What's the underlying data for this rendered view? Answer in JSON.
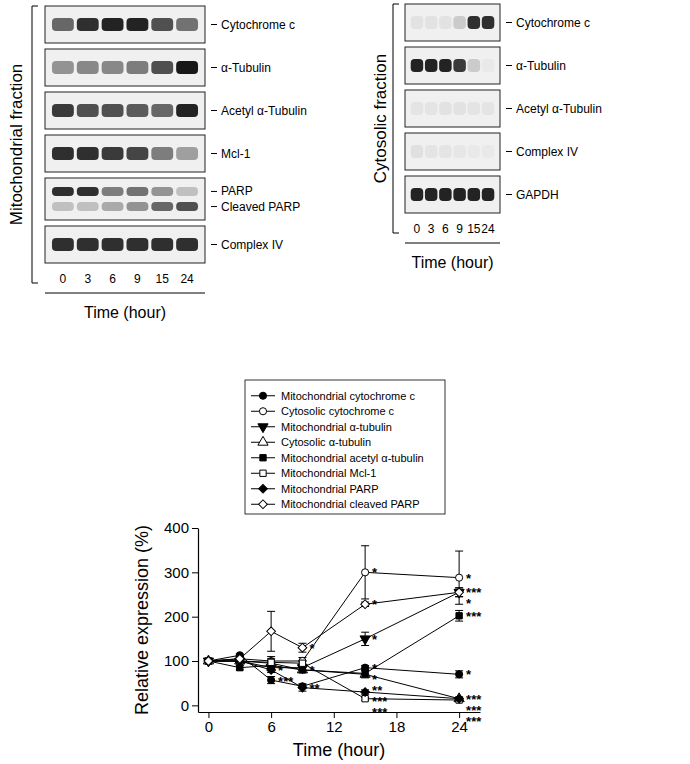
{
  "blots": [
    {
      "title": "Mitochondrial fraction",
      "lanes": [
        "0",
        "3",
        "6",
        "9",
        "15",
        "24"
      ],
      "xlabel": "Time (hour)",
      "rows": [
        {
          "bands": [
            {
              "label": "Cytochrome c",
              "intensity": [
                0.6,
                0.85,
                0.9,
                0.9,
                0.7,
                0.55
              ]
            }
          ]
        },
        {
          "bands": [
            {
              "label": "α-Tubulin",
              "intensity": [
                0.4,
                0.45,
                0.45,
                0.5,
                0.7,
                0.95
              ]
            }
          ]
        },
        {
          "bands": [
            {
              "label": "Acetyl α-Tubulin",
              "intensity": [
                0.8,
                0.7,
                0.7,
                0.65,
                0.6,
                0.9
              ]
            }
          ]
        },
        {
          "bands": [
            {
              "label": "Mcl-1",
              "intensity": [
                0.85,
                0.85,
                0.8,
                0.75,
                0.5,
                0.35
              ]
            }
          ]
        },
        {
          "bands": [
            {
              "label": "PARP",
              "intensity": [
                0.85,
                0.85,
                0.5,
                0.55,
                0.4,
                0.2
              ]
            },
            {
              "label": "Cleaved PARP",
              "intensity": [
                0.2,
                0.2,
                0.3,
                0.4,
                0.6,
                0.7
              ]
            }
          ]
        },
        {
          "bands": [
            {
              "label": "Complex IV",
              "intensity": [
                0.85,
                0.85,
                0.85,
                0.85,
                0.85,
                0.85
              ]
            }
          ]
        }
      ]
    },
    {
      "title": "Cytosolic fraction",
      "lanes": [
        "0",
        "3",
        "6",
        "9",
        "15",
        "24"
      ],
      "xlabel": "Time (hour)",
      "rows": [
        {
          "bands": [
            {
              "label": "Cytochrome c",
              "intensity": [
                0.05,
                0.05,
                0.05,
                0.15,
                0.85,
                0.85
              ]
            }
          ]
        },
        {
          "bands": [
            {
              "label": "α-Tubulin",
              "intensity": [
                0.9,
                0.9,
                0.9,
                0.8,
                0.15,
                0.02
              ]
            }
          ]
        },
        {
          "bands": [
            {
              "label": "Acetyl α-Tubulin",
              "intensity": [
                0.04,
                0.04,
                0.05,
                0.05,
                0.04,
                0.04
              ]
            }
          ]
        },
        {
          "bands": [
            {
              "label": "Complex IV",
              "intensity": [
                0.06,
                0.04,
                0.04,
                0.03,
                0.02,
                0.02
              ]
            }
          ]
        },
        {
          "bands": [
            {
              "label": "GAPDH",
              "intensity": [
                0.9,
                0.9,
                0.9,
                0.9,
                0.9,
                0.9
              ]
            }
          ]
        }
      ]
    }
  ],
  "chart_data": {
    "type": "line",
    "xlabel": "Time (hour)",
    "ylabel": "Relative expression (%)",
    "x": [
      0,
      3,
      6,
      9,
      15,
      24
    ],
    "xlim": [
      -1,
      26
    ],
    "xticks": [
      0,
      6,
      12,
      18,
      24
    ],
    "ylim": [
      -15,
      400
    ],
    "yticks": [
      0,
      100,
      200,
      300,
      400
    ],
    "legend": "top",
    "series": [
      {
        "name": "Mitochondrial cytochrome c",
        "color": "#000000",
        "marker": "circle",
        "values": [
          100,
          113,
          57,
          43,
          85,
          70
        ],
        "errors": [
          0,
          3,
          8,
          5,
          5,
          8
        ],
        "annotations": [
          null,
          null,
          "***",
          null,
          "*",
          "*"
        ]
      },
      {
        "name": "Cytosolic cytochrome c",
        "color": "#000000",
        "marker": "circle-open",
        "values": [
          100,
          105,
          100,
          100,
          300,
          288
        ],
        "errors": [
          0,
          5,
          10,
          8,
          60,
          60
        ],
        "annotations": [
          null,
          null,
          null,
          null,
          "*",
          "*"
        ]
      },
      {
        "name": "Mitochondrial α-tubulin",
        "color": "#000000",
        "marker": "triangle-down",
        "values": [
          100,
          100,
          85,
          85,
          150,
          255
        ],
        "errors": [
          0,
          5,
          5,
          8,
          15,
          10
        ],
        "annotations": [
          null,
          null,
          null,
          null,
          "*",
          "***"
        ]
      },
      {
        "name": "Cytosolic α-tubulin",
        "color": "#000000",
        "marker": "triangle-open",
        "values": [
          100,
          100,
          95,
          80,
          70,
          15
        ],
        "errors": [
          0,
          4,
          5,
          6,
          8,
          4
        ],
        "annotations": [
          null,
          null,
          null,
          "*",
          "**",
          "***"
        ]
      },
      {
        "name": "Mitochondrial acetyl α-tubulin",
        "color": "#000000",
        "marker": "square",
        "values": [
          100,
          85,
          90,
          80,
          72,
          202
        ],
        "errors": [
          0,
          5,
          6,
          6,
          8,
          12
        ],
        "annotations": [
          null,
          null,
          null,
          null,
          "*",
          "***"
        ]
      },
      {
        "name": "Mitochondrial Mcl-1",
        "color": "#000000",
        "marker": "square-open",
        "values": [
          100,
          100,
          97,
          95,
          15,
          12
        ],
        "errors": [
          0,
          5,
          8,
          6,
          3,
          3
        ],
        "annotations": [
          null,
          null,
          null,
          null,
          "***",
          "***"
        ]
      },
      {
        "name": "Mitochondrial PARP",
        "color": "#000000",
        "marker": "diamond",
        "values": [
          100,
          100,
          80,
          40,
          30,
          15
        ],
        "errors": [
          0,
          4,
          6,
          8,
          5,
          3
        ],
        "annotations": [
          null,
          null,
          "*",
          "**",
          "***",
          "***"
        ]
      },
      {
        "name": "Mitochondrial cleaved PARP",
        "color": "#000000",
        "marker": "diamond-open",
        "values": [
          100,
          105,
          167,
          130,
          228,
          255
        ],
        "errors": [
          0,
          5,
          45,
          10,
          5,
          10
        ],
        "annotations": [
          null,
          null,
          null,
          "*",
          "*",
          "*"
        ]
      }
    ]
  }
}
